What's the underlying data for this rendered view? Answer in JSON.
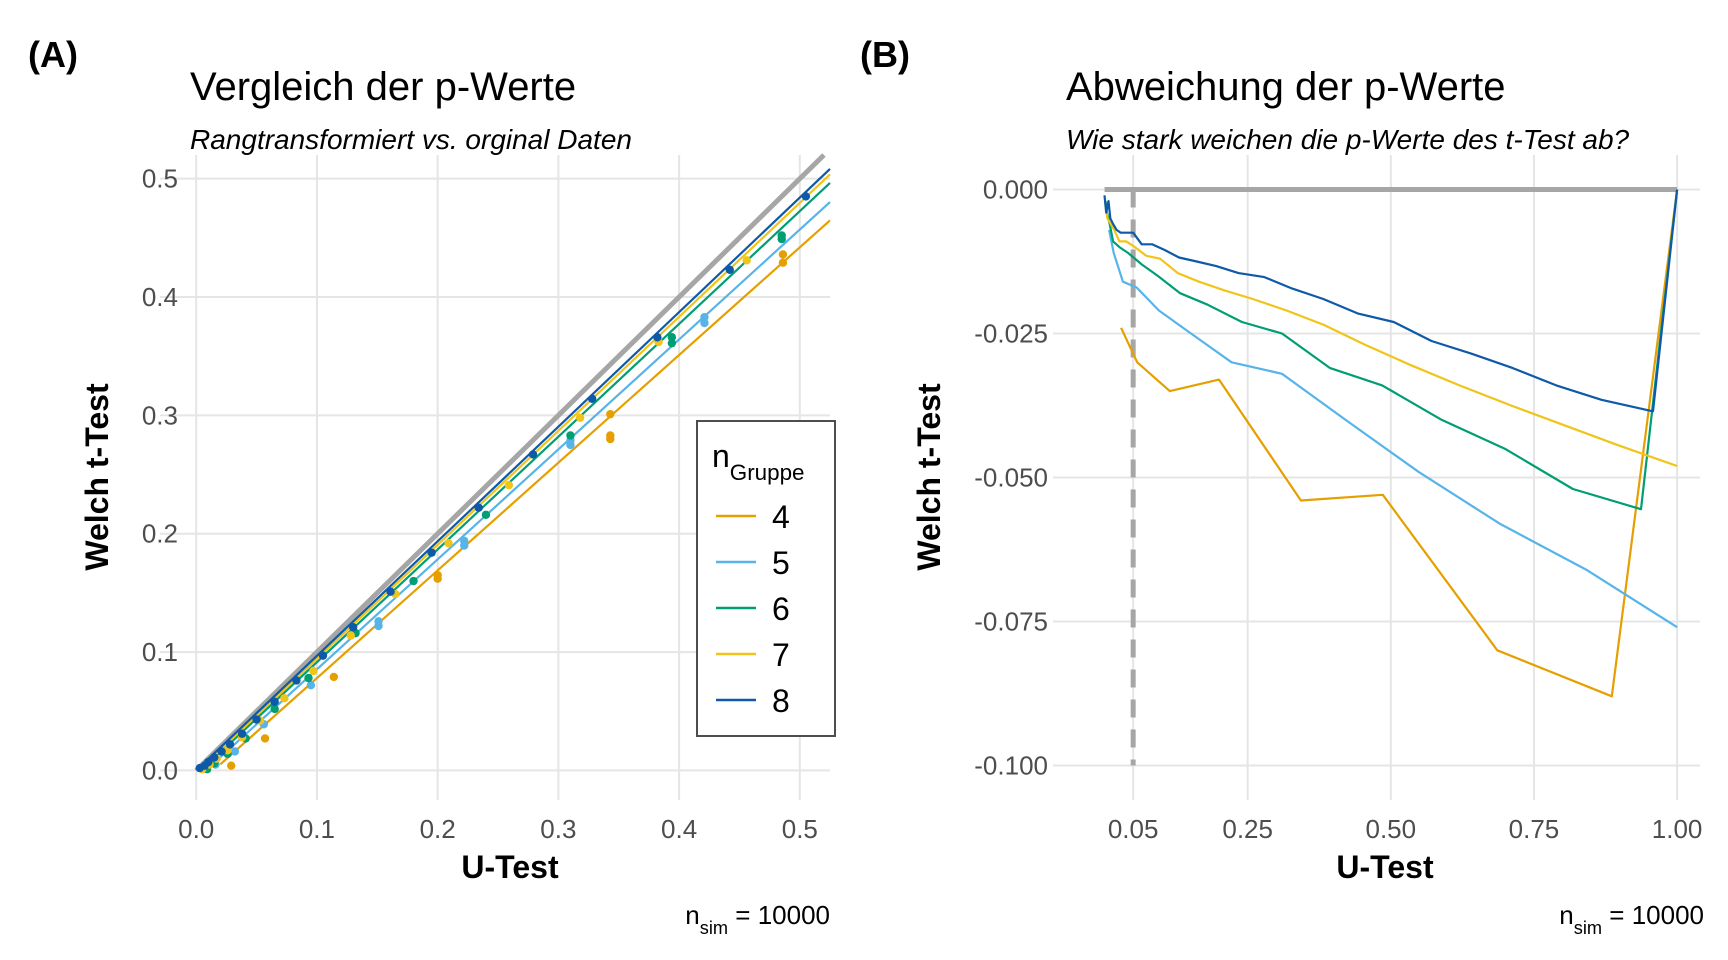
{
  "chart_data": [
    {
      "type": "scatter",
      "panel_tag": "(A)",
      "title": "Vergleich der p-Werte",
      "subtitle": "Rangtransformiert vs. orginal Daten",
      "xlabel": "U-Test",
      "ylabel": "Welch t-Test",
      "xlim": [
        -0.03,
        0.525
      ],
      "ylim": [
        -0.025,
        0.52
      ],
      "xticks": [
        0.0,
        0.1,
        0.2,
        0.3,
        0.4,
        0.5
      ],
      "xtick_labels": [
        "0.0",
        "0.1",
        "0.2",
        "0.3",
        "0.4",
        "0.5"
      ],
      "yticks": [
        0.0,
        0.1,
        0.2,
        0.3,
        0.4,
        0.5
      ],
      "ytick_labels": [
        "0.0",
        "0.1",
        "0.2",
        "0.3",
        "0.4",
        "0.5"
      ],
      "grid": true,
      "reference_line": {
        "description": "identity line y = x",
        "color": "#a6a6a6"
      },
      "caption": {
        "base": "n",
        "sub": "sim",
        "rest": " = 10000"
      },
      "legend": {
        "title_base": "n",
        "title_sub": "Gruppe",
        "placement": "bottom-right inside",
        "entries": [
          "4",
          "5",
          "6",
          "7",
          "8"
        ]
      },
      "series": [
        {
          "name": "4",
          "color": "#E69F00",
          "slope": 0.91,
          "intercept": -0.013,
          "x0": 0.02,
          "points": [
            [
              0.029,
              0.004
            ],
            [
              0.057,
              0.027
            ],
            [
              0.114,
              0.079
            ],
            [
              0.2,
              0.162
            ],
            [
              0.2,
              0.165
            ],
            [
              0.343,
              0.28
            ],
            [
              0.343,
              0.283
            ],
            [
              0.343,
              0.301
            ],
            [
              0.486,
              0.429
            ],
            [
              0.486,
              0.436
            ]
          ]
        },
        {
          "name": "5",
          "color": "#56B4E9",
          "slope": 0.93,
          "intercept": -0.008,
          "x0": 0.008,
          "points": [
            [
              0.016,
              0.005
            ],
            [
              0.032,
              0.016
            ],
            [
              0.056,
              0.039
            ],
            [
              0.095,
              0.072
            ],
            [
              0.151,
              0.122
            ],
            [
              0.151,
              0.126
            ],
            [
              0.222,
              0.19
            ],
            [
              0.222,
              0.194
            ],
            [
              0.31,
              0.275
            ],
            [
              0.31,
              0.279
            ],
            [
              0.421,
              0.378
            ],
            [
              0.421,
              0.383
            ]
          ]
        },
        {
          "name": "6",
          "color": "#009E73",
          "slope": 0.955,
          "intercept": -0.005,
          "x0": 0.004,
          "points": [
            [
              0.009,
              0.001
            ],
            [
              0.015,
              0.006
            ],
            [
              0.026,
              0.014
            ],
            [
              0.041,
              0.027
            ],
            [
              0.065,
              0.052
            ],
            [
              0.093,
              0.078
            ],
            [
              0.132,
              0.116
            ],
            [
              0.18,
              0.16
            ],
            [
              0.24,
              0.216
            ],
            [
              0.31,
              0.283
            ],
            [
              0.394,
              0.361
            ],
            [
              0.394,
              0.366
            ],
            [
              0.485,
              0.449
            ],
            [
              0.485,
              0.452
            ]
          ]
        },
        {
          "name": "7",
          "color": "#F0C419",
          "slope": 0.965,
          "intercept": -0.003,
          "x0": 0.002,
          "points": [
            [
              0.005,
              0.001
            ],
            [
              0.011,
              0.005
            ],
            [
              0.017,
              0.01
            ],
            [
              0.026,
              0.017
            ],
            [
              0.038,
              0.028
            ],
            [
              0.053,
              0.042
            ],
            [
              0.073,
              0.061
            ],
            [
              0.097,
              0.084
            ],
            [
              0.128,
              0.114
            ],
            [
              0.165,
              0.149
            ],
            [
              0.209,
              0.192
            ],
            [
              0.259,
              0.241
            ],
            [
              0.318,
              0.298
            ],
            [
              0.383,
              0.362
            ],
            [
              0.456,
              0.431
            ]
          ]
        },
        {
          "name": "8",
          "color": "#0E5AA8",
          "slope": 0.97,
          "intercept": -0.001,
          "x0": 0.0,
          "points": [
            [
              0.003,
              0.002
            ],
            [
              0.007,
              0.004
            ],
            [
              0.01,
              0.007
            ],
            [
              0.015,
              0.011
            ],
            [
              0.021,
              0.016
            ],
            [
              0.028,
              0.022
            ],
            [
              0.038,
              0.031
            ],
            [
              0.05,
              0.043
            ],
            [
              0.065,
              0.058
            ],
            [
              0.083,
              0.076
            ],
            [
              0.105,
              0.097
            ],
            [
              0.13,
              0.121
            ],
            [
              0.161,
              0.151
            ],
            [
              0.195,
              0.184
            ],
            [
              0.234,
              0.222
            ],
            [
              0.279,
              0.267
            ],
            [
              0.328,
              0.314
            ],
            [
              0.382,
              0.366
            ],
            [
              0.442,
              0.423
            ],
            [
              0.505,
              0.485
            ]
          ]
        }
      ]
    },
    {
      "type": "line",
      "panel_tag": "(B)",
      "title": "Abweichung der p-Werte",
      "subtitle": "Wie stark weichen die p-Werte des t-Test ab?",
      "xlabel": "U-Test",
      "ylabel": "Welch t-Test",
      "xlim": [
        -0.09,
        1.04
      ],
      "ylim": [
        -0.106,
        0.006
      ],
      "xticks": [
        0.05,
        0.25,
        0.5,
        0.75,
        1.0
      ],
      "xtick_labels": [
        "0.05",
        "0.25",
        "0.50",
        "0.75",
        "1.00"
      ],
      "yticks": [
        0.0,
        -0.025,
        -0.05,
        -0.075,
        -0.1
      ],
      "ytick_labels": [
        "0.000",
        "-0.025",
        "-0.050",
        "-0.075",
        "-0.100"
      ],
      "grid": true,
      "reference_line": {
        "description": "horizontal line at y = 0",
        "color": "#a6a6a6"
      },
      "threshold_line": {
        "x": 0.05,
        "style": "dashed",
        "color": "#a6a6a6"
      },
      "caption": {
        "base": "n",
        "sub": "sim",
        "rest": " = 10000"
      },
      "series": [
        {
          "name": "4",
          "color": "#E69F00",
          "points": [
            [
              0.029,
              -0.024
            ],
            [
              0.057,
              -0.03
            ],
            [
              0.114,
              -0.035
            ],
            [
              0.2,
              -0.033
            ],
            [
              0.343,
              -0.054
            ],
            [
              0.486,
              -0.053
            ],
            [
              0.686,
              -0.08
            ],
            [
              0.886,
              -0.088
            ],
            [
              1.0,
              0.0
            ]
          ]
        },
        {
          "name": "5",
          "color": "#56B4E9",
          "points": [
            [
              0.008,
              -0.007
            ],
            [
              0.016,
              -0.011
            ],
            [
              0.032,
              -0.016
            ],
            [
              0.056,
              -0.017
            ],
            [
              0.095,
              -0.021
            ],
            [
              0.151,
              -0.025
            ],
            [
              0.222,
              -0.03
            ],
            [
              0.31,
              -0.032
            ],
            [
              0.421,
              -0.04
            ],
            [
              0.548,
              -0.049
            ],
            [
              0.69,
              -0.058
            ],
            [
              0.841,
              -0.066
            ],
            [
              1.0,
              -0.076
            ]
          ]
        },
        {
          "name": "6",
          "color": "#009E73",
          "points": [
            [
              0.002,
              -0.002
            ],
            [
              0.004,
              -0.004
            ],
            [
              0.009,
              -0.006
            ],
            [
              0.015,
              -0.009
            ],
            [
              0.026,
              -0.01
            ],
            [
              0.041,
              -0.011
            ],
            [
              0.065,
              -0.013
            ],
            [
              0.093,
              -0.015
            ],
            [
              0.132,
              -0.018
            ],
            [
              0.18,
              -0.02
            ],
            [
              0.24,
              -0.023
            ],
            [
              0.31,
              -0.025
            ],
            [
              0.394,
              -0.031
            ],
            [
              0.485,
              -0.034
            ],
            [
              0.589,
              -0.04
            ],
            [
              0.699,
              -0.045
            ],
            [
              0.818,
              -0.052
            ],
            [
              0.937,
              -0.0555
            ],
            [
              1.0,
              0.0
            ]
          ]
        },
        {
          "name": "7",
          "color": "#F0C419",
          "points": [
            [
              0.001,
              -0.002
            ],
            [
              0.002,
              -0.003
            ],
            [
              0.005,
              -0.005
            ],
            [
              0.011,
              -0.006
            ],
            [
              0.017,
              -0.007
            ],
            [
              0.026,
              -0.009
            ],
            [
              0.038,
              -0.009
            ],
            [
              0.053,
              -0.01
            ],
            [
              0.073,
              -0.0115
            ],
            [
              0.097,
              -0.012
            ],
            [
              0.128,
              -0.0145
            ],
            [
              0.165,
              -0.016
            ],
            [
              0.209,
              -0.0175
            ],
            [
              0.259,
              -0.019
            ],
            [
              0.318,
              -0.021
            ],
            [
              0.383,
              -0.0235
            ],
            [
              0.456,
              -0.027
            ],
            [
              0.535,
              -0.0305
            ],
            [
              0.62,
              -0.034
            ],
            [
              0.71,
              -0.0375
            ],
            [
              0.805,
              -0.041
            ],
            [
              0.9,
              -0.0445
            ],
            [
              1.0,
              -0.048
            ]
          ]
        },
        {
          "name": "8",
          "color": "#0E5AA8",
          "points": [
            [
              0.0,
              -0.001
            ],
            [
              0.003,
              -0.004
            ],
            [
              0.007,
              -0.002
            ],
            [
              0.01,
              -0.005
            ],
            [
              0.015,
              -0.006
            ],
            [
              0.021,
              -0.007
            ],
            [
              0.028,
              -0.0075
            ],
            [
              0.038,
              -0.0075
            ],
            [
              0.05,
              -0.0075
            ],
            [
              0.065,
              -0.0095
            ],
            [
              0.083,
              -0.0095
            ],
            [
              0.105,
              -0.0105
            ],
            [
              0.13,
              -0.0118
            ],
            [
              0.161,
              -0.0125
            ],
            [
              0.195,
              -0.0133
            ],
            [
              0.234,
              -0.0145
            ],
            [
              0.279,
              -0.0152
            ],
            [
              0.328,
              -0.0172
            ],
            [
              0.382,
              -0.019
            ],
            [
              0.442,
              -0.0215
            ],
            [
              0.505,
              -0.023
            ],
            [
              0.571,
              -0.0263
            ],
            [
              0.641,
              -0.0285
            ],
            [
              0.713,
              -0.031
            ],
            [
              0.789,
              -0.034
            ],
            [
              0.868,
              -0.0365
            ],
            [
              0.958,
              -0.0385
            ],
            [
              1.0,
              0.0
            ]
          ]
        }
      ]
    }
  ]
}
